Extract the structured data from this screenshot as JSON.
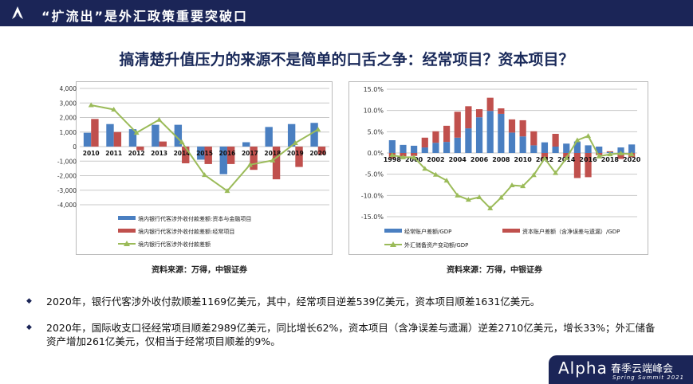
{
  "header": {
    "title": "“扩流出”是外汇政策重要突破口"
  },
  "page_title": "搞清楚升值压力的来源不是简单的口舌之争：经常项目？资本项目？",
  "chart_data": [
    {
      "type": "bar",
      "categories": [
        "2010",
        "2011",
        "2012",
        "2013",
        "2014",
        "2015",
        "2016",
        "2017",
        "2018",
        "2019",
        "2020"
      ],
      "ylim": [
        -4000,
        4000
      ],
      "yticks": [
        "4,000",
        "3,000",
        "2,000",
        "1,000",
        "0",
        "-1,000",
        "-2,000",
        "-3,000",
        "-4,000"
      ],
      "grid": true,
      "legend": "bottom",
      "series": [
        {
          "name": "境内银行代客涉外收付款差额:资本与金融项目",
          "kind": "bar",
          "color": "#4a7fc1",
          "values": [
            950,
            1550,
            1200,
            1500,
            1500,
            -900,
            -1900,
            300,
            1350,
            1550,
            1631
          ]
        },
        {
          "name": "境内银行代客涉外收付款差额:经常项目",
          "kind": "bar",
          "color": "#c0504d",
          "values": [
            1900,
            1000,
            -250,
            350,
            -1150,
            -1200,
            -1200,
            -1600,
            -2250,
            -1400,
            -539
          ]
        },
        {
          "name": "境内银行代客涉外收付款差额",
          "kind": "line",
          "color": "#9bbb59",
          "values": [
            2850,
            2550,
            950,
            1850,
            300,
            -1950,
            -3050,
            -1250,
            -950,
            250,
            1169
          ]
        }
      ]
    },
    {
      "type": "bar",
      "stacked": true,
      "categories": [
        "1998",
        "1999",
        "2000",
        "2001",
        "2002",
        "2003",
        "2004",
        "2005",
        "2006",
        "2007",
        "2008",
        "2009",
        "2010",
        "2011",
        "2012",
        "2013",
        "2014",
        "2015",
        "2016",
        "2017",
        "2018",
        "2019",
        "2020"
      ],
      "xticklabels": [
        "1998",
        "2000",
        "2002",
        "2004",
        "2006",
        "2008",
        "2010",
        "2012",
        "2014",
        "2016",
        "2018",
        "2020"
      ],
      "ylim": [
        -15,
        15
      ],
      "yticks": [
        "15.0%",
        "10.0%",
        "5.0%",
        "0.0%",
        "-5.0%",
        "-10.0%",
        "-15.0%"
      ],
      "grid": true,
      "legend": "bottom",
      "series": [
        {
          "name": "经常账户差额/GDP",
          "kind": "bar",
          "color": "#4a7fc1",
          "values": [
            3.0,
            1.9,
            1.7,
            1.3,
            2.4,
            2.6,
            3.6,
            5.8,
            8.4,
            9.9,
            9.2,
            4.8,
            3.9,
            1.8,
            2.5,
            1.5,
            2.2,
            2.7,
            1.8,
            1.5,
            0.2,
            1.3,
            2.0
          ]
        },
        {
          "name": "资本账户差额（含净误差与遗漏）/GDP",
          "kind": "bar",
          "color": "#c0504d",
          "values": [
            -1.3,
            -0.8,
            -0.7,
            2.3,
            2.7,
            3.8,
            6.1,
            5.2,
            1.9,
            3.1,
            1.3,
            3.1,
            3.8,
            3.3,
            -1.6,
            3.0,
            -1.0,
            -5.9,
            -5.7,
            -0.5,
            0.2,
            -1.4,
            -1.0
          ]
        },
        {
          "name": "外汇储备资产变动额/GDP",
          "kind": "line",
          "color": "#9bbb59",
          "values": [
            -0.5,
            -1.0,
            -1.0,
            -3.7,
            -5.1,
            -6.5,
            -10.0,
            -11.0,
            -10.4,
            -13.0,
            -10.5,
            -7.6,
            -7.8,
            -5.2,
            -1.3,
            -4.7,
            -1.2,
            3.0,
            4.0,
            -0.8,
            -0.3,
            -0.1,
            -0.3
          ]
        }
      ]
    }
  ],
  "sources": [
    "资料来源：万得，中银证券",
    "资料来源：万得，中银证券"
  ],
  "bullets": [
    "2020年，银行代客涉外收付款顺差1169亿美元，其中，经常项目逆差539亿美元，资本项目顺差1631亿美元。",
    "2020年，国际收支口径经常项目顺差2989亿美元，同比增长62%，资本项目（含净误差与遗漏）逆差2710亿美元，增长33%；外汇储备资产增加261亿美元，仅相当于经常项目顺差的9%。"
  ],
  "footer": {
    "brand": "Alpha",
    "event": "春季云端峰会",
    "event_en": "Spring Summit 2021"
  }
}
